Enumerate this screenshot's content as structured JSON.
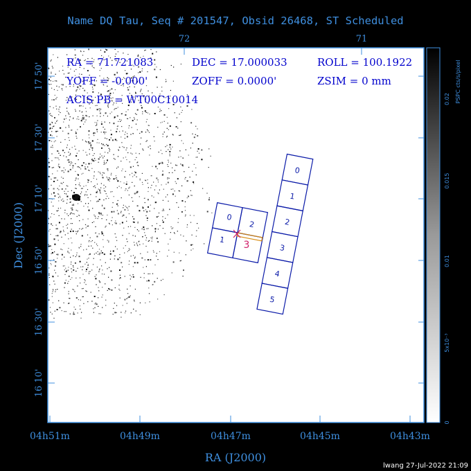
{
  "title": "Name DQ Tau, Seq # 201547, Obsid 26468, ST Scheduled",
  "colors": {
    "background": "#000000",
    "axis": "#3f8fdf",
    "text_blue": "#0000cc",
    "chip": "#0a1aa8",
    "pink": "#d0206a",
    "orange": "#d88a10",
    "white": "#ffffff"
  },
  "top_ticks": [
    "72",
    "71"
  ],
  "info": {
    "ra": "RA = 71.721083",
    "dec": "DEC = 17.000033",
    "roll": "ROLL = 100.1922",
    "yoff": "YOFF = -0.000'",
    "zoff": "ZOFF = 0.0000'",
    "zsim": "ZSIM = 0 mm",
    "acis_pb": "ACIS PB = WT00C10014"
  },
  "y_axis": {
    "label": "Dec (J2000)",
    "ticks": [
      "17 50'",
      "17 30'",
      "17 10'",
      "16 50'",
      "16 30'",
      "16 10'"
    ]
  },
  "x_axis": {
    "label": "RA (J2000)",
    "ticks": [
      "04h51m",
      "04h49m",
      "04h47m",
      "04h45m",
      "04h43m"
    ]
  },
  "colorbar": {
    "unit": "PSPC cts/s/pixel",
    "ticks": [
      "0.02",
      "0.015",
      "0.01",
      "5x10⁻³",
      "0"
    ]
  },
  "aciss_chips": [
    "0",
    "1",
    "2",
    "3",
    "4",
    "5"
  ],
  "acisi_chips": [
    "0",
    "1",
    "2",
    "3"
  ],
  "target_marker_label": "3",
  "footer": "lwang 27-Jul-2022 21:09"
}
